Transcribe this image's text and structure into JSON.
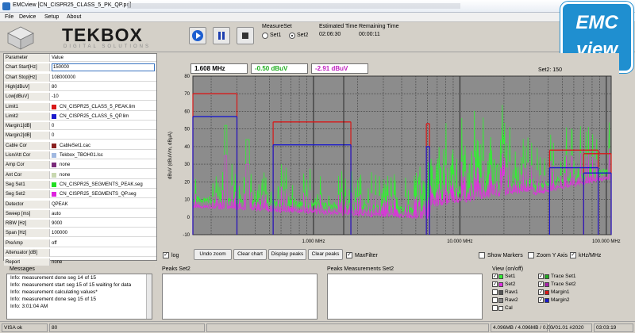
{
  "window": {
    "title": "EMCview [CN_CISPR25_CLASS_5_PK_QP.prj]"
  },
  "menu": {
    "items": [
      "File",
      "Device",
      "Setup",
      "About"
    ]
  },
  "toolbar": {
    "logo": "TEKBOX",
    "logo_sub": "DIGITAL SOLUTIONS",
    "measure_set_label": "MeasureSet",
    "set1_label": "Set1",
    "set2_label": "Set2",
    "selected_set": "Set2",
    "estimated_time_label": "Estimated Time",
    "estimated_time": "02:06:30",
    "remaining_time_label": "Remaining Time",
    "remaining_time": "00:00:11"
  },
  "badge": {
    "line1": "EMC",
    "line2": "view",
    "color": "#1f8fd0"
  },
  "params": {
    "header_name": "Parameter",
    "header_value": "Value",
    "rows": [
      {
        "name": "Chart Start[Hz]",
        "value": "150000"
      },
      {
        "name": "Chart Stop[Hz]",
        "value": "108000000"
      },
      {
        "name": "High[dBuV]",
        "value": "80"
      },
      {
        "name": "Low[dBuV]",
        "value": "-10"
      },
      {
        "name": "Limit1",
        "value": "CN_CISPR25_CLASS_5_PEAK.lim",
        "swatch": "#d81818"
      },
      {
        "name": "Limit2",
        "value": "CN_CISPR25_CLASS_5_QP.lim",
        "swatch": "#1a1acc"
      },
      {
        "name": "Margin1[dB]",
        "value": "0"
      },
      {
        "name": "Margin2[dB]",
        "value": "0"
      },
      {
        "name": "Cable Cor",
        "value": "CableSet1.cac",
        "swatch": "#8a2020"
      },
      {
        "name": "Lisn/Att Cor",
        "value": "Tekbox_TBOH01.lsc",
        "swatch": "#a0b8e0"
      },
      {
        "name": "Amp Cor",
        "value": "none",
        "swatch": "#7a2a7a"
      },
      {
        "name": "Ant Cor",
        "value": "none",
        "swatch": "#c8d8b0"
      },
      {
        "name": "Seg Set1",
        "value": "CN_CISPR25_SEGMENTS_PEAK.seg",
        "swatch": "#22dd22"
      },
      {
        "name": "Seg Set2",
        "value": "CN_CISPR25_SEGMENTS_QP.seg",
        "swatch": "#dd22dd"
      },
      {
        "name": "Detector",
        "value": "QPEAK"
      },
      {
        "name": "Sweep [ms]",
        "value": "auto"
      },
      {
        "name": "RBW [Hz]",
        "value": "9000"
      },
      {
        "name": "Span [Hz]",
        "value": "100000"
      },
      {
        "name": "PreAmp",
        "value": "off"
      },
      {
        "name": "Attenuator [dB]",
        "value": ""
      },
      {
        "name": "Report",
        "value": "none"
      }
    ]
  },
  "readouts": {
    "freq": "1.608 MHz",
    "set1_level": "-0.50 dBuV",
    "set2_level": "-2.91 dBuV",
    "set2_label": "Set2: 150"
  },
  "chart_data": {
    "type": "line",
    "x_scale": "log",
    "xlim_hz": [
      150000,
      108000000
    ],
    "ylim": [
      -10,
      80
    ],
    "ylabel": "dBuV   (dBuV/m, dBµA)",
    "yticks": [
      -10,
      0,
      10,
      20,
      30,
      40,
      50,
      60,
      70,
      80
    ],
    "xtick_labels": [
      "1.000 MHz",
      "10.000 MHz",
      "100.000 MHz"
    ],
    "background": "#8c8c8c",
    "grid": true,
    "limit_lines": [
      {
        "name": "Limit1",
        "color": "#d81818",
        "segments": [
          {
            "f": [
              150000,
              300000
            ],
            "y": 70
          },
          {
            "f": [
              530000,
              1800000
            ],
            "y": 54
          },
          {
            "f": [
              5900000,
              6200000
            ],
            "y": 53
          },
          {
            "f": [
              41000000,
              88000000
            ],
            "y": 38
          },
          {
            "f": [
              70000000,
              108000000
            ],
            "y": 36
          }
        ]
      },
      {
        "name": "Limit2",
        "color": "#1a1acc",
        "segments": [
          {
            "f": [
              150000,
              300000
            ],
            "y": 57
          },
          {
            "f": [
              530000,
              1800000
            ],
            "y": 41
          },
          {
            "f": [
              5900000,
              6200000
            ],
            "y": 40
          },
          {
            "f": [
              41000000,
              88000000
            ],
            "y": 28
          },
          {
            "f": [
              70000000,
              108000000
            ],
            "y": 25
          }
        ]
      }
    ],
    "series": [
      {
        "name": "Set1",
        "color": "#33ee33"
      },
      {
        "name": "Set2",
        "color": "#dd33dd"
      }
    ]
  },
  "chart_controls": {
    "log_label": "log",
    "zoom_undo": "Undo zoom",
    "clear_chart": "Clear chart",
    "display_peaks": "Display peaks",
    "clear_peaks": "Clear peaks",
    "maxfilter_label": "MaxFilter",
    "show_markers": "Show Markers",
    "zoom_y_axis": "Zoom Y Axis",
    "khz_mhz": "kHz/MHz"
  },
  "messages": {
    "title": "Messages",
    "lines": [
      "Info: measurement done  seg 14 of 15",
      "Info: measurement start   seg 15 of 15 waiting for data",
      "Info: measurement calculating values*",
      "Info: measurement done  seg 15 of 15",
      "Info: 3:01:04 AM"
    ]
  },
  "peaks_set2": {
    "title": "Peaks Set2"
  },
  "peaks_measurements_set2": {
    "title": "Peaks Measurements Set2"
  },
  "view": {
    "title": "View (on/off)",
    "items_left": [
      {
        "label": "Set1",
        "color": "#33ee33",
        "checked": true
      },
      {
        "label": "Set2",
        "color": "#dd33dd",
        "checked": true
      },
      {
        "label": "Raw1",
        "color": "#555555",
        "checked": false
      },
      {
        "label": "Raw2",
        "color": "#888888",
        "checked": false
      },
      {
        "label": "Cal",
        "color": "#ffffff",
        "checked": false
      }
    ],
    "items_right": [
      {
        "label": "Trace Set1",
        "color": "#22aa22",
        "checked": true
      },
      {
        "label": "Trace Set2",
        "color": "#aa22aa",
        "checked": true
      },
      {
        "label": "Margin1",
        "color": "#d81818",
        "checked": true
      },
      {
        "label": "Margin2",
        "color": "#1a1acc",
        "checked": true
      }
    ]
  },
  "status": {
    "visa": "VISA ok",
    "value": "80",
    "memory": "4.096MB / 4.096MB / 0.00",
    "version": "V01.01 #2020",
    "time": "03:03:19"
  }
}
